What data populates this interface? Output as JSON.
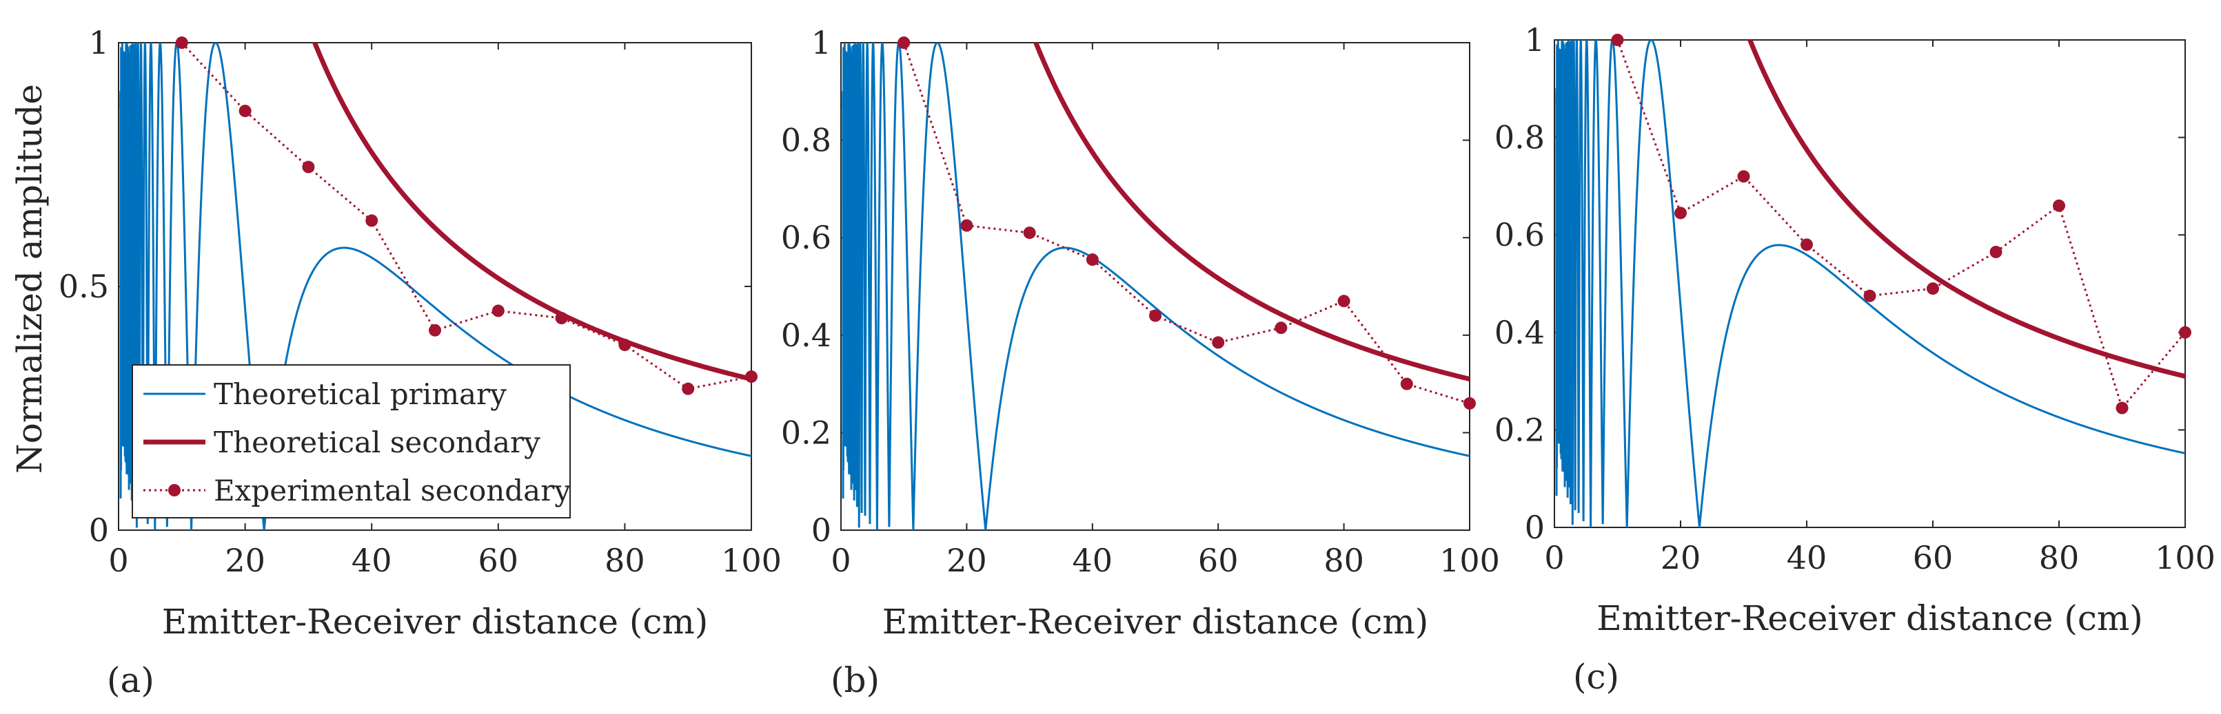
{
  "chart_data": [
    {
      "type": "line",
      "panel_label": "(a)",
      "xlabel": "Emitter-Receiver distance (cm)",
      "ylabel": "Normalized amplitude",
      "xlim": [
        0,
        100
      ],
      "ylim": [
        0,
        1
      ],
      "xticks": [
        0,
        20,
        40,
        60,
        80,
        100
      ],
      "yticks": [
        0,
        0.5,
        1
      ],
      "ytick_labels": [
        "0",
        "0.5",
        "1"
      ],
      "legend": {
        "position": "bottom-left",
        "entries": [
          "Theoretical primary",
          "Theoretical secondary",
          "Experimental secondary"
        ]
      },
      "series": [
        {
          "name": "Theoretical primary",
          "style": "thin-line",
          "color": "#0072BD",
          "model": "oscillating primary field |sin(pi*r0/r)|*r0/r, r0=23cm (clipped at 1)"
        },
        {
          "name": "Theoretical secondary",
          "style": "thick-line",
          "color": "#A2142F",
          "model": "decay 31/r"
        },
        {
          "name": "Experimental secondary",
          "style": "dotted-markers",
          "color": "#A2142F",
          "x": [
            10,
            20,
            30,
            40,
            50,
            60,
            70,
            80,
            90,
            100
          ],
          "values": [
            1.0,
            0.86,
            0.745,
            0.635,
            0.41,
            0.45,
            0.435,
            0.38,
            0.29,
            0.315
          ]
        }
      ]
    },
    {
      "type": "line",
      "panel_label": "(b)",
      "xlabel": "Emitter-Receiver distance (cm)",
      "ylabel": "",
      "xlim": [
        0,
        100
      ],
      "ylim": [
        0,
        1
      ],
      "xticks": [
        0,
        20,
        40,
        60,
        80,
        100
      ],
      "yticks": [
        0,
        0.2,
        0.4,
        0.6,
        0.8,
        1
      ],
      "ytick_labels": [
        "0",
        "0.2",
        "0.4",
        "0.6",
        "0.8",
        "1"
      ],
      "series": [
        {
          "name": "Theoretical primary",
          "style": "thin-line",
          "color": "#0072BD",
          "model": "oscillating primary field |sin(pi*r0/r)|*r0/r, r0=23cm (clipped at 1)"
        },
        {
          "name": "Theoretical secondary",
          "style": "thick-line",
          "color": "#A2142F",
          "model": "decay 31/r"
        },
        {
          "name": "Experimental secondary",
          "style": "dotted-markers",
          "color": "#A2142F",
          "x": [
            10,
            20,
            30,
            40,
            50,
            60,
            70,
            80,
            90,
            100
          ],
          "values": [
            1.0,
            0.625,
            0.61,
            0.555,
            0.44,
            0.385,
            0.415,
            0.47,
            0.3,
            0.26
          ]
        }
      ]
    },
    {
      "type": "line",
      "panel_label": "(c)",
      "xlabel": "Emitter-Receiver distance (cm)",
      "ylabel": "",
      "xlim": [
        0,
        100
      ],
      "ylim": [
        0,
        1
      ],
      "xticks": [
        0,
        20,
        40,
        60,
        80,
        100
      ],
      "yticks": [
        0,
        0.2,
        0.4,
        0.6,
        0.8,
        1
      ],
      "ytick_labels": [
        "0",
        "0.2",
        "0.4",
        "0.6",
        "0.8",
        "1"
      ],
      "series": [
        {
          "name": "Theoretical primary",
          "style": "thin-line",
          "color": "#0072BD",
          "model": "oscillating primary field |sin(pi*r0/r)|*r0/r, r0=23cm (clipped at 1)"
        },
        {
          "name": "Theoretical secondary",
          "style": "thick-line",
          "color": "#A2142F",
          "model": "decay 31/r"
        },
        {
          "name": "Experimental secondary",
          "style": "dotted-markers",
          "color": "#A2142F",
          "x": [
            10,
            20,
            30,
            40,
            50,
            60,
            70,
            80,
            90,
            100
          ],
          "values": [
            1.0,
            0.645,
            0.72,
            0.58,
            0.475,
            0.49,
            0.565,
            0.66,
            0.245,
            0.4
          ]
        }
      ]
    }
  ]
}
